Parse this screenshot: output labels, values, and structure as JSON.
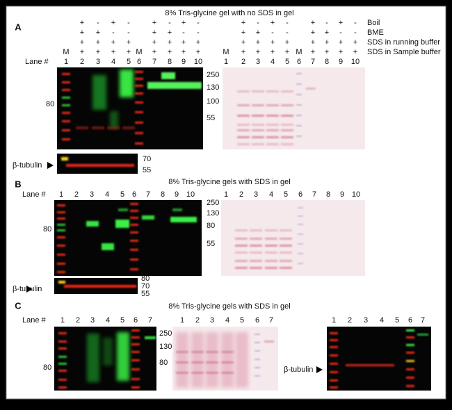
{
  "panel_a": {
    "letter": "A",
    "title": "8% Tris-glycine gel with no SDS in gel",
    "lane_label": "Lane #",
    "conditions": [
      "Boil",
      "BME",
      "SDS in running buffer",
      "SDS in Sample buffer"
    ],
    "signs": [
      [
        "+",
        "-",
        "+",
        "-"
      ],
      [
        "+",
        "+",
        "-",
        "-"
      ],
      [
        "+",
        "+",
        "+",
        "+"
      ],
      [
        "+",
        "+",
        "+",
        "+"
      ]
    ],
    "marker_lane": "M",
    "lanes": [
      1,
      2,
      3,
      4,
      5,
      6,
      7,
      8,
      9,
      10
    ],
    "left_marker": "80",
    "mid_markers": [
      "250",
      "130",
      "100",
      "55"
    ],
    "tubulin_label": "β-tubulin",
    "tubulin_markers": [
      "70",
      "55"
    ]
  },
  "panel_b": {
    "letter": "B",
    "title": "8% Tris-glycine gels with SDS in gel",
    "lane_label": "Lane #",
    "lanes": [
      1,
      2,
      3,
      4,
      5,
      6,
      7,
      8,
      9,
      10
    ],
    "left_marker": "80",
    "mid_markers": [
      "250",
      "130",
      "80",
      "55"
    ],
    "tubulin_label": "β-tubulin",
    "tubulin_markers": [
      "80",
      "70",
      "55"
    ]
  },
  "panel_c": {
    "letter": "C",
    "title": "8% Tris-glycine gels with SDS in gel",
    "lane_label": "Lane #",
    "lanes": [
      1,
      2,
      3,
      4,
      5,
      6,
      7
    ],
    "left_marker": "80",
    "mid_markers": [
      "250",
      "130",
      "80"
    ],
    "tubulin_label": "β-tubulin"
  }
}
